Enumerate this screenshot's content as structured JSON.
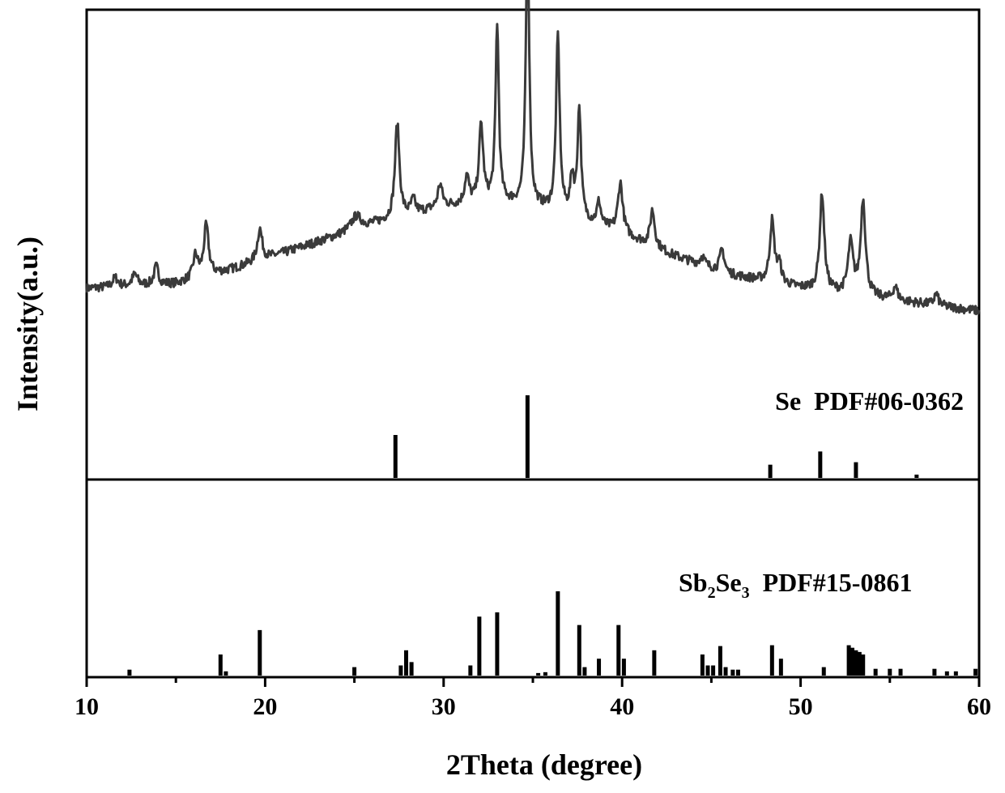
{
  "chart_data": {
    "type": "line",
    "xlabel": "2Theta (degree)",
    "ylabel": "Intensity(a.u.)",
    "xlim": [
      10,
      60
    ],
    "xticks": [
      10,
      20,
      30,
      40,
      50,
      60
    ],
    "grid": false,
    "xrd_pattern": {
      "background": [
        [
          10,
          30
        ],
        [
          15,
          32
        ],
        [
          18,
          38
        ],
        [
          22,
          48
        ],
        [
          26,
          58
        ],
        [
          30,
          66
        ],
        [
          33,
          68
        ],
        [
          35,
          66
        ],
        [
          37,
          62
        ],
        [
          40,
          54
        ],
        [
          43,
          44
        ],
        [
          46,
          36
        ],
        [
          50,
          30
        ],
        [
          54,
          26
        ],
        [
          57,
          23
        ],
        [
          60,
          20
        ]
      ],
      "peaks": [
        {
          "x": 11.6,
          "h": 4,
          "w": 0.18
        },
        {
          "x": 12.7,
          "h": 5,
          "w": 0.18
        },
        {
          "x": 13.9,
          "h": 8,
          "w": 0.15
        },
        {
          "x": 16.1,
          "h": 10,
          "w": 0.16
        },
        {
          "x": 16.7,
          "h": 22,
          "w": 0.16
        },
        {
          "x": 19.7,
          "h": 14,
          "w": 0.16
        },
        {
          "x": 25.1,
          "h": 6,
          "w": 0.35
        },
        {
          "x": 27.4,
          "h": 42,
          "w": 0.15
        },
        {
          "x": 28.3,
          "h": 6,
          "w": 0.15
        },
        {
          "x": 29.8,
          "h": 10,
          "w": 0.15
        },
        {
          "x": 31.3,
          "h": 12,
          "w": 0.15
        },
        {
          "x": 32.1,
          "h": 34,
          "w": 0.14
        },
        {
          "x": 33.0,
          "h": 78,
          "w": 0.11
        },
        {
          "x": 34.7,
          "h": 124,
          "w": 0.11
        },
        {
          "x": 36.4,
          "h": 78,
          "w": 0.12
        },
        {
          "x": 37.2,
          "h": 16,
          "w": 0.12
        },
        {
          "x": 37.6,
          "h": 48,
          "w": 0.12
        },
        {
          "x": 38.7,
          "h": 10,
          "w": 0.13
        },
        {
          "x": 39.9,
          "h": 22,
          "w": 0.16
        },
        {
          "x": 41.7,
          "h": 16,
          "w": 0.15
        },
        {
          "x": 44.5,
          "h": 4,
          "w": 0.15
        },
        {
          "x": 45.6,
          "h": 10,
          "w": 0.15
        },
        {
          "x": 48.4,
          "h": 27,
          "w": 0.15
        },
        {
          "x": 48.8,
          "h": 8,
          "w": 0.15
        },
        {
          "x": 51.2,
          "h": 43,
          "w": 0.15
        },
        {
          "x": 52.8,
          "h": 22,
          "w": 0.17
        },
        {
          "x": 53.5,
          "h": 42,
          "w": 0.16
        },
        {
          "x": 55.3,
          "h": 6,
          "w": 0.15
        },
        {
          "x": 57.6,
          "h": 5,
          "w": 0.15
        }
      ]
    },
    "references": [
      {
        "label": "Se  PDF#06-0362",
        "sticks": [
          [
            27.3,
            52
          ],
          [
            34.7,
            100
          ],
          [
            48.3,
            16
          ],
          [
            51.1,
            32
          ],
          [
            53.1,
            19
          ],
          [
            56.5,
            4
          ]
        ]
      },
      {
        "label_main": "Sb",
        "label_sub1": "2",
        "label_mid": "Se",
        "label_sub2": "3",
        "label_tail": "  PDF#15-0861",
        "sticks": [
          [
            12.4,
            7
          ],
          [
            17.5,
            25
          ],
          [
            17.8,
            5
          ],
          [
            19.7,
            54
          ],
          [
            25.0,
            10
          ],
          [
            27.6,
            12
          ],
          [
            27.9,
            30
          ],
          [
            28.2,
            16
          ],
          [
            31.5,
            12
          ],
          [
            32.0,
            70
          ],
          [
            33.0,
            75
          ],
          [
            35.3,
            3
          ],
          [
            35.7,
            4
          ],
          [
            36.4,
            100
          ],
          [
            37.6,
            60
          ],
          [
            37.9,
            10
          ],
          [
            38.7,
            20
          ],
          [
            39.8,
            60
          ],
          [
            40.1,
            20
          ],
          [
            41.8,
            30
          ],
          [
            44.5,
            25
          ],
          [
            44.8,
            12
          ],
          [
            45.1,
            12
          ],
          [
            45.5,
            35
          ],
          [
            45.8,
            10
          ],
          [
            46.2,
            7
          ],
          [
            46.5,
            7
          ],
          [
            48.4,
            36
          ],
          [
            48.9,
            20
          ],
          [
            51.3,
            10
          ],
          [
            52.7,
            36
          ],
          [
            52.9,
            33
          ],
          [
            53.1,
            30
          ],
          [
            53.3,
            28
          ],
          [
            53.5,
            25
          ],
          [
            54.2,
            8
          ],
          [
            55.0,
            8
          ],
          [
            55.6,
            8
          ],
          [
            57.5,
            8
          ],
          [
            58.2,
            5
          ],
          [
            58.7,
            5
          ],
          [
            59.8,
            8
          ]
        ]
      }
    ]
  }
}
